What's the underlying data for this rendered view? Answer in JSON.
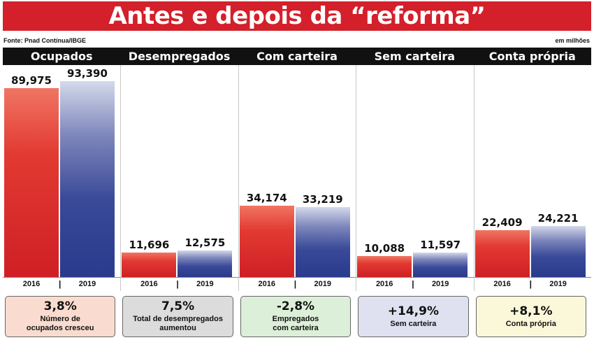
{
  "title": "Antes e depois da “reforma”",
  "source": "Fonte: Pnad Contínua/IBGE",
  "unit": "em milhões",
  "separator": "|",
  "colors": {
    "banner": "#d3202b",
    "bar_2016": "#d8242a",
    "bar_2019": "#2c3b8d"
  },
  "chart_data": {
    "type": "bar",
    "categories": [
      "Ocupados",
      "Desempregados",
      "Com carteira",
      "Sem carteira",
      "Conta própria"
    ],
    "x": [
      "2016",
      "2019"
    ],
    "ymax": 100,
    "panels": [
      {
        "title": "Ocupados",
        "labels": [
          "89,975",
          "93,390"
        ],
        "values": [
          89.975,
          93.39
        ],
        "pct": "3,8%",
        "desc": "Número de\nocupados cresceu",
        "box_color": "#f9dccf"
      },
      {
        "title": "Desempregados",
        "labels": [
          "11,696",
          "12,575"
        ],
        "values": [
          11.696,
          12.575
        ],
        "pct": "7,5%",
        "desc": "Total de desempregados\naumentou",
        "box_color": "#dcdcdc"
      },
      {
        "title": "Com carteira",
        "labels": [
          "34,174",
          "33,219"
        ],
        "values": [
          34.174,
          33.219
        ],
        "pct": "-2,8%",
        "desc": "Empregados\ncom carteira",
        "box_color": "#dcefd8"
      },
      {
        "title": "Sem carteira",
        "labels": [
          "10,088",
          "11,597"
        ],
        "values": [
          10.088,
          11.597
        ],
        "pct": "+14,9%",
        "desc": "Sem carteira",
        "box_color": "#dfe1f1"
      },
      {
        "title": "Conta própria",
        "labels": [
          "22,409",
          "24,221"
        ],
        "values": [
          22.409,
          24.221
        ],
        "pct": "+8,1%",
        "desc": "Conta própria",
        "box_color": "#fbf7d9"
      }
    ]
  }
}
